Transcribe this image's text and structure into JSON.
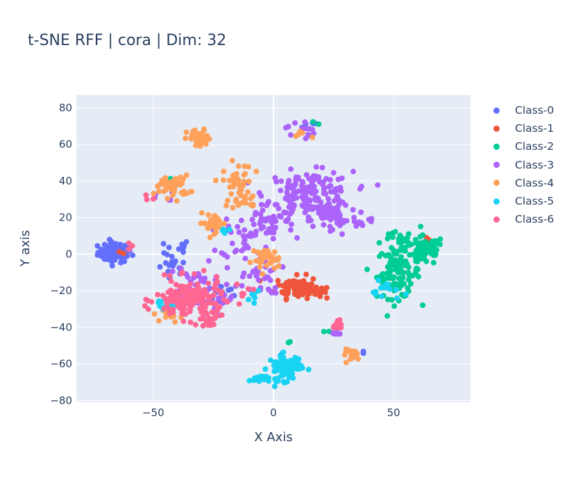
{
  "title": "t-SNE RFF | cora | Dim: 32",
  "chart_data": {
    "type": "scatter",
    "title": "t-SNE RFF | cora | Dim: 32",
    "xlabel": "X Axis",
    "ylabel": "Y axis",
    "xlim": [
      -82,
      82
    ],
    "ylim": [
      -81,
      87
    ],
    "xticks": [
      -50,
      0,
      50
    ],
    "xtick_labels": [
      "−50",
      "0",
      "50"
    ],
    "yticks": [
      -80,
      -60,
      -40,
      -20,
      0,
      20,
      40,
      60,
      80
    ],
    "ytick_labels": [
      "−80",
      "−60",
      "−40",
      "−20",
      "0",
      "20",
      "40",
      "60",
      "80"
    ],
    "grid": true,
    "legend_position": "right",
    "background": "#e5ecf6",
    "series": [
      {
        "name": "Class-0",
        "color": "#636efa",
        "clusters": [
          {
            "x": -66,
            "y": 1,
            "sx": 3.5,
            "sy": 2.8,
            "n": 80
          },
          {
            "x": -42,
            "y": -8,
            "sx": 3,
            "sy": 4,
            "n": 20
          },
          {
            "x": -22,
            "y": -22,
            "sx": 3,
            "sy": 3,
            "n": 15
          },
          {
            "x": 15,
            "y": 72,
            "sx": 2,
            "sy": 2,
            "n": 5
          },
          {
            "x": -40,
            "y": 3,
            "sx": 2.5,
            "sy": 2.5,
            "n": 8
          },
          {
            "x": 37,
            "y": -53,
            "sx": 1,
            "sy": 1,
            "n": 2
          }
        ]
      },
      {
        "name": "Class-1",
        "color": "#ef553b",
        "clusters": [
          {
            "x": 10,
            "y": -18,
            "sx": 4.5,
            "sy": 3,
            "n": 75
          },
          {
            "x": 18,
            "y": -20,
            "sx": 2,
            "sy": 2,
            "n": 15
          },
          {
            "x": -64,
            "y": 2,
            "sx": 1,
            "sy": 1,
            "n": 2
          },
          {
            "x": 62,
            "y": 8,
            "sx": 1,
            "sy": 1,
            "n": 2
          }
        ]
      },
      {
        "name": "Class-2",
        "color": "#00cc96",
        "clusters": [
          {
            "x": 52,
            "y": -10,
            "sx": 4.5,
            "sy": 7,
            "n": 110
          },
          {
            "x": 63,
            "y": 2,
            "sx": 4,
            "sy": 4,
            "n": 70
          },
          {
            "x": 52,
            "y": 8,
            "sx": 3,
            "sy": 2,
            "n": 15
          },
          {
            "x": 18,
            "y": 72,
            "sx": 1,
            "sy": 1,
            "n": 2
          },
          {
            "x": 7,
            "y": -48,
            "sx": 1,
            "sy": 1,
            "n": 2
          },
          {
            "x": -43,
            "y": 43,
            "sx": 1,
            "sy": 1,
            "n": 1
          },
          {
            "x": 22,
            "y": -42,
            "sx": 1,
            "sy": 1,
            "n": 2
          }
        ]
      },
      {
        "name": "Class-3",
        "color": "#ab63fa",
        "clusters": [
          {
            "x": 15,
            "y": 33,
            "sx": 9,
            "sy": 6,
            "n": 160
          },
          {
            "x": 25,
            "y": 20,
            "sx": 5,
            "sy": 5,
            "n": 60
          },
          {
            "x": -2,
            "y": 18,
            "sx": 6,
            "sy": 5,
            "n": 50
          },
          {
            "x": -12,
            "y": 8,
            "sx": 5,
            "sy": 5,
            "n": 25
          },
          {
            "x": -32,
            "y": -20,
            "sx": 8,
            "sy": 7,
            "n": 60
          },
          {
            "x": -5,
            "y": -12,
            "sx": 4,
            "sy": 5,
            "n": 30
          },
          {
            "x": 11,
            "y": 68,
            "sx": 3,
            "sy": 3,
            "n": 15
          },
          {
            "x": 38,
            "y": 18,
            "sx": 2,
            "sy": 1,
            "n": 6
          },
          {
            "x": 26,
            "y": -43,
            "sx": 2,
            "sy": 2,
            "n": 5
          },
          {
            "x": -45,
            "y": 30,
            "sx": 2,
            "sy": 2,
            "n": 5
          }
        ]
      },
      {
        "name": "Class-4",
        "color": "#ffa15a",
        "clusters": [
          {
            "x": -31,
            "y": 63,
            "sx": 2.5,
            "sy": 2.5,
            "n": 45
          },
          {
            "x": -42,
            "y": 37,
            "sx": 3.5,
            "sy": 3,
            "n": 50
          },
          {
            "x": -15,
            "y": 38,
            "sx": 3,
            "sy": 6,
            "n": 45
          },
          {
            "x": -25,
            "y": 17,
            "sx": 3,
            "sy": 2.5,
            "n": 30
          },
          {
            "x": -3,
            "y": -3,
            "sx": 3,
            "sy": 3,
            "n": 35
          },
          {
            "x": 33,
            "y": -55,
            "sx": 2,
            "sy": 1.5,
            "n": 20
          },
          {
            "x": -42,
            "y": -33,
            "sx": 2,
            "sy": 2,
            "n": 15
          },
          {
            "x": 11,
            "y": 66,
            "sx": 2,
            "sy": 2,
            "n": 5
          },
          {
            "x": -12,
            "y": 28,
            "sx": 2,
            "sy": 2,
            "n": 8
          }
        ]
      },
      {
        "name": "Class-5",
        "color": "#19d3f3",
        "clusters": [
          {
            "x": 5,
            "y": -62,
            "sx": 3.5,
            "sy": 3.5,
            "n": 80
          },
          {
            "x": -6,
            "y": -68,
            "sx": 2,
            "sy": 1,
            "n": 20
          },
          {
            "x": 47,
            "y": -20,
            "sx": 3,
            "sy": 2.5,
            "n": 15
          },
          {
            "x": -45,
            "y": -28,
            "sx": 2.5,
            "sy": 2,
            "n": 15
          },
          {
            "x": -8,
            "y": -22,
            "sx": 2,
            "sy": 2,
            "n": 8
          },
          {
            "x": -20,
            "y": 12,
            "sx": 1.5,
            "sy": 1.5,
            "n": 5
          }
        ]
      },
      {
        "name": "Class-6",
        "color": "#ff6692",
        "clusters": [
          {
            "x": -35,
            "y": -25,
            "sx": 7,
            "sy": 5.5,
            "n": 150
          },
          {
            "x": -27,
            "y": -35,
            "sx": 2.5,
            "sy": 2,
            "n": 20
          },
          {
            "x": 27,
            "y": -38,
            "sx": 1.5,
            "sy": 1.5,
            "n": 10
          },
          {
            "x": -50,
            "y": 31,
            "sx": 1,
            "sy": 1,
            "n": 3
          },
          {
            "x": -61,
            "y": 5,
            "sx": 1.5,
            "sy": 1.5,
            "n": 3
          },
          {
            "x": -12,
            "y": -20,
            "sx": 2,
            "sy": 2,
            "n": 6
          }
        ]
      }
    ]
  }
}
